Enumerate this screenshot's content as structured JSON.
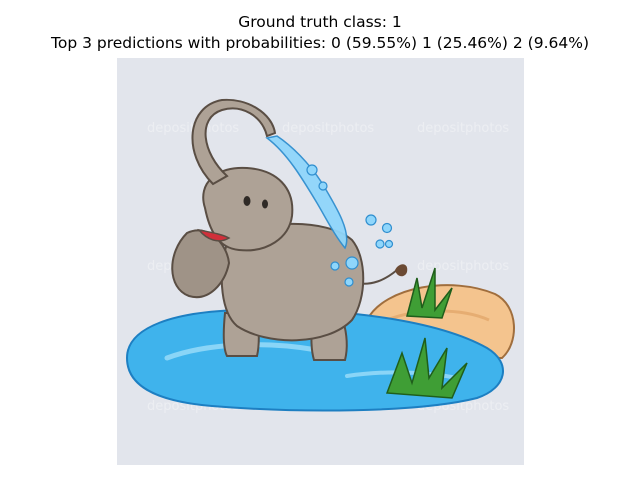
{
  "title": {
    "ground_truth": "Ground truth class: 1",
    "predictions": "Top 3 predictions with probabilities: 0 (59.55%) 1 (25.46%) 2 (9.64%)"
  },
  "image": {
    "watermark": "depositphotos",
    "colors": {
      "background": "#e2e5ec",
      "elephant": "#aea296",
      "water": "#3fb3ec",
      "sand": "#f4c48e",
      "grass": "#3f9e35"
    }
  }
}
